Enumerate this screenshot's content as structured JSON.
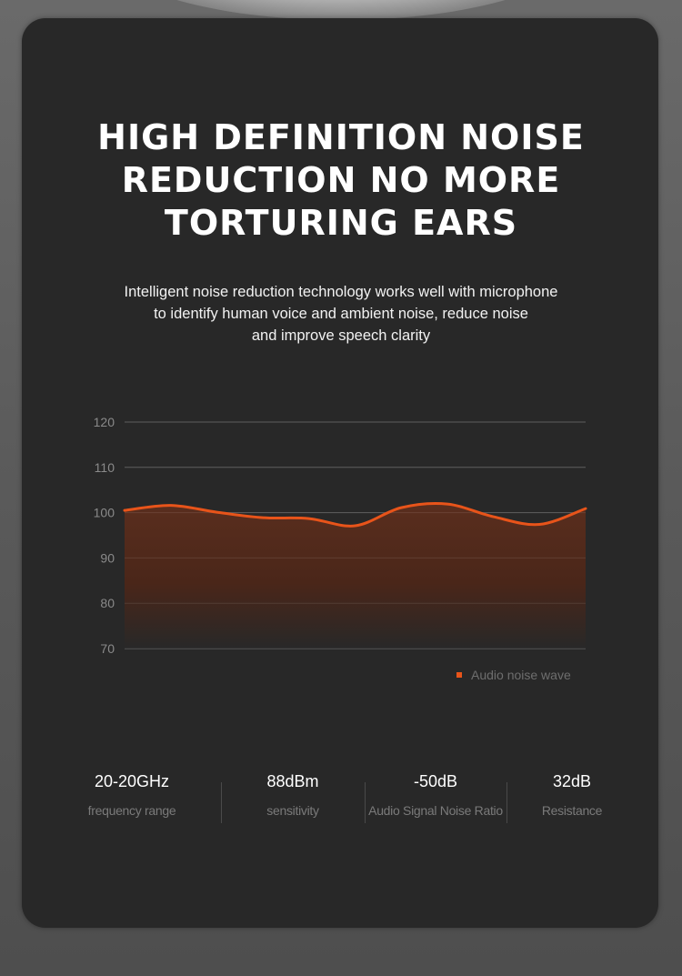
{
  "headline": {
    "line1": "HIGH DEFINITION NOISE",
    "line2": "REDUCTION NO MORE",
    "line3": "TORTURING EARS"
  },
  "subtitle": {
    "line1": "Intelligent noise reduction technology works well with microphone",
    "line2": "to identify human voice and ambient noise, reduce noise",
    "line3": "and improve speech clarity"
  },
  "colors": {
    "panel": "#282828",
    "accent": "#e8541a",
    "fill": "#5a2e1e"
  },
  "chart_data": {
    "type": "area",
    "title": "",
    "xlabel": "",
    "ylabel": "",
    "ylim": [
      70,
      120
    ],
    "yticks": [
      120,
      110,
      100,
      90,
      80,
      70
    ],
    "x": [
      0,
      1,
      2,
      3,
      4,
      5,
      6,
      7,
      8,
      9,
      10
    ],
    "grid": true,
    "legend_position": "bottom-right",
    "series": [
      {
        "name": "Audio noise wave",
        "color": "#e8541a",
        "values": [
          100.5,
          101.6,
          100.1,
          98.9,
          98.7,
          97.1,
          101.1,
          101.9,
          99.1,
          97.4,
          100.9
        ]
      }
    ]
  },
  "specs": [
    {
      "value": "20-20GHz",
      "label": "frequency range"
    },
    {
      "value": "88dBm",
      "label": "sensitivity"
    },
    {
      "value": "-50dB",
      "label": "Audio Signal  Noise Ratio"
    },
    {
      "value": "32dB",
      "label": "Resistance"
    }
  ]
}
